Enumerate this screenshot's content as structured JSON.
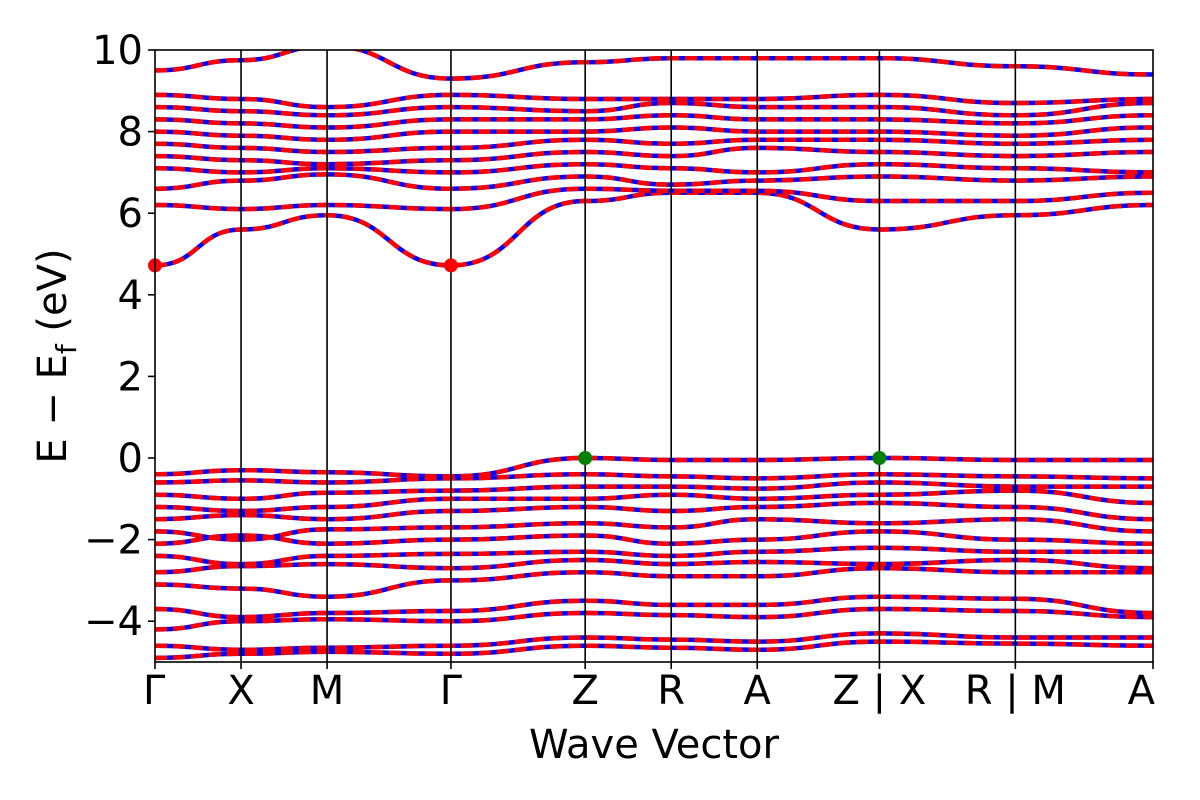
{
  "chart_data": {
    "type": "line",
    "title": "",
    "xlabel": "Wave Vector",
    "ylabel": "E − E",
    "ylabel_sub": "f",
    "ylabel_unit": " (eV)",
    "ylim": [
      -5,
      10
    ],
    "yticks": [
      -4,
      -2,
      0,
      2,
      4,
      6,
      8,
      10
    ],
    "ytick_labels": [
      "−4",
      "−2",
      "0",
      "2",
      "4",
      "6",
      "8",
      "10"
    ],
    "x_positions": [
      0,
      1,
      2,
      3.44,
      5,
      6,
      7,
      8.42,
      10,
      11.6
    ],
    "x_tick_labels": [
      "Γ",
      "X",
      "M",
      "Γ",
      "Z",
      "R",
      "A",
      "Z | X",
      "R | M",
      "A"
    ],
    "grid": false,
    "colors": {
      "spin_up": "#ff0000",
      "spin_down": "#0000ff",
      "cbm": "#ff0000",
      "vbm": "#008000",
      "axes": "#000000"
    },
    "series": [
      {
        "values": [
          [
            -4.9,
            -4.8,
            -4.75,
            -4.8,
            -4.6,
            -4.65,
            -4.7,
            -4.5,
            -4.55,
            -4.6
          ],
          [
            -4.6,
            -4.7,
            -4.65,
            -4.6,
            -4.4,
            -4.45,
            -4.5,
            -4.3,
            -4.4,
            -4.4
          ],
          [
            -4.2,
            -4.0,
            -3.95,
            -4.0,
            -3.8,
            -3.85,
            -3.9,
            -3.7,
            -3.75,
            -3.9
          ],
          [
            -3.7,
            -3.9,
            -3.8,
            -3.75,
            -3.5,
            -3.6,
            -3.6,
            -3.4,
            -3.45,
            -3.8
          ],
          [
            -3.1,
            -3.2,
            -3.4,
            -3.0,
            -2.8,
            -2.9,
            -2.9,
            -2.7,
            -2.8,
            -2.8
          ],
          [
            -2.8,
            -2.65,
            -2.6,
            -2.7,
            -2.5,
            -2.6,
            -2.55,
            -2.6,
            -2.5,
            -2.7
          ],
          [
            -2.4,
            -2.6,
            -2.4,
            -2.35,
            -2.3,
            -2.4,
            -2.3,
            -2.2,
            -2.3,
            -2.3
          ],
          [
            -2.1,
            -1.9,
            -2.1,
            -2.0,
            -1.9,
            -2.1,
            -2.0,
            -1.8,
            -2.0,
            -2.1
          ],
          [
            -1.8,
            -2.0,
            -1.75,
            -1.7,
            -1.6,
            -1.7,
            -1.5,
            -1.6,
            -1.5,
            -1.8
          ],
          [
            -1.5,
            -1.4,
            -1.5,
            -1.3,
            -1.2,
            -1.3,
            -1.2,
            -1.1,
            -1.2,
            -1.5
          ],
          [
            -1.2,
            -1.3,
            -1.2,
            -1.0,
            -1.0,
            -0.9,
            -1.0,
            -0.9,
            -0.8,
            -1.1
          ],
          [
            -0.9,
            -1.0,
            -0.85,
            -0.8,
            -0.7,
            -0.7,
            -0.75,
            -0.6,
            -0.7,
            -0.7
          ],
          [
            -0.6,
            -0.55,
            -0.6,
            -0.5,
            -0.4,
            -0.45,
            -0.5,
            -0.4,
            -0.45,
            -0.5
          ],
          [
            -0.4,
            -0.3,
            -0.35,
            -0.45,
            0.0,
            -0.05,
            -0.05,
            0.0,
            -0.05,
            -0.05
          ],
          [
            4.72,
            5.6,
            5.95,
            4.72,
            6.3,
            6.5,
            6.5,
            5.6,
            5.95,
            6.2
          ],
          [
            6.2,
            6.1,
            6.2,
            6.1,
            6.6,
            6.55,
            6.55,
            6.3,
            6.3,
            6.5
          ],
          [
            6.6,
            6.8,
            6.95,
            6.6,
            6.9,
            6.7,
            6.8,
            6.9,
            6.8,
            6.9
          ],
          [
            7.1,
            7.0,
            7.1,
            7.0,
            7.2,
            7.1,
            7.0,
            7.2,
            7.1,
            7.0
          ],
          [
            7.4,
            7.3,
            7.2,
            7.3,
            7.5,
            7.4,
            7.6,
            7.5,
            7.4,
            7.5
          ],
          [
            7.7,
            7.6,
            7.5,
            7.6,
            7.8,
            7.7,
            7.8,
            7.8,
            7.7,
            7.8
          ],
          [
            8.0,
            7.9,
            7.8,
            8.0,
            8.0,
            8.1,
            8.0,
            8.0,
            7.9,
            8.1
          ],
          [
            8.3,
            8.2,
            8.1,
            8.3,
            8.3,
            8.4,
            8.3,
            8.3,
            8.2,
            8.4
          ],
          [
            8.6,
            8.5,
            8.4,
            8.6,
            8.5,
            8.7,
            8.6,
            8.6,
            8.4,
            8.7
          ],
          [
            8.9,
            8.8,
            8.6,
            8.9,
            8.8,
            8.8,
            8.8,
            8.9,
            8.7,
            8.8
          ],
          [
            9.5,
            9.75,
            10.1,
            9.3,
            9.7,
            9.8,
            9.8,
            9.8,
            9.6,
            9.4
          ]
        ]
      }
    ],
    "highlights": [
      {
        "x": 0,
        "y": 4.72,
        "role": "cbm"
      },
      {
        "x": 3.44,
        "y": 4.72,
        "role": "cbm"
      },
      {
        "x": 5,
        "y": 0,
        "role": "vbm"
      },
      {
        "x": 8.42,
        "y": 0,
        "role": "vbm"
      }
    ]
  }
}
